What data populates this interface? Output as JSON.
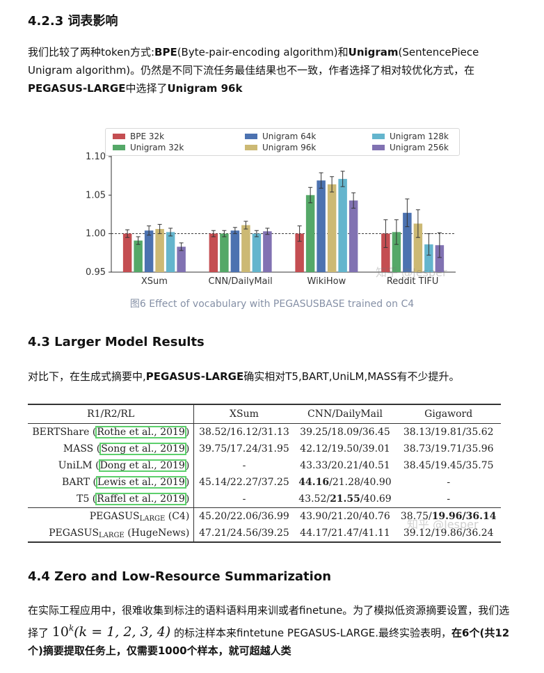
{
  "sections": {
    "s423": {
      "heading": "4.2.3 词表影响",
      "para_a": "我们比较了两种token方式:",
      "para_b": "BPE",
      "para_c": "(Byte-pair-encoding algorithm)和",
      "para_d": "Unigram",
      "para_e": "(SentencePiece Unigram algorithm)。仍然是不同下流任务最佳结果也不一致，作者选择了相对较优化方式，在",
      "para_f": "PEGASUS-LARGE",
      "para_g": "中选择了",
      "para_h": "Unigram 96k"
    },
    "s43": {
      "heading": "4.3 Larger Model Results",
      "para_a": "对比下，在生成式摘要中,",
      "para_b": "PEGASUS-LARGE",
      "para_c": "确实相对T5,BART,UniLM,MASS有不少提升。"
    },
    "s44": {
      "heading": "4.4 Zero and Low-Resource Summarization",
      "para_a": "在实际工程应用中，很难收集到标注的语料语料用来训或者finetune。为了模拟低资源摘要设置，我们选择了",
      "math_base": "10",
      "math_exp": "k",
      "math_rest": "(k = 1, 2, 3, 4)",
      "para_b": " 的标注样本来fintetune PEGASUS-LARGE.最终实验表明，",
      "para_c": "在6个(共12个)摘要提取任务上，仅需要1000个样本，就可超越人类"
    }
  },
  "figure": {
    "caption": "图6 Effect of vocabulary with PEGASUSBASE trained on C4",
    "watermark": "知乎 @Jesper"
  },
  "chart_data": {
    "type": "bar",
    "categories": [
      "XSum",
      "CNN/DailyMail",
      "WikiHow",
      "Reddit TIFU"
    ],
    "ylim": [
      0.95,
      1.1
    ],
    "yticks": [
      "0.95",
      "1.00",
      "1.05",
      "1.10"
    ],
    "reference_line": 1.0,
    "grid": false,
    "legend_position": "top",
    "series": [
      {
        "name": "BPE 32k",
        "color": "#c44e52",
        "values": [
          1.0,
          1.0,
          1.0,
          1.0
        ],
        "err": [
          0.005,
          0.004,
          0.01,
          0.018
        ]
      },
      {
        "name": "Unigram 32k",
        "color": "#55a868",
        "values": [
          0.991,
          1.0,
          1.05,
          1.002
        ],
        "err": [
          0.005,
          0.004,
          0.01,
          0.016
        ]
      },
      {
        "name": "Unigram 64k",
        "color": "#4c72b0",
        "values": [
          1.004,
          1.004,
          1.069,
          1.027
        ],
        "err": [
          0.006,
          0.004,
          0.01,
          0.018
        ]
      },
      {
        "name": "Unigram 96k",
        "color": "#ccb974",
        "values": [
          1.006,
          1.011,
          1.064,
          1.013
        ],
        "err": [
          0.006,
          0.005,
          0.01,
          0.018
        ]
      },
      {
        "name": "Unigram 128k",
        "color": "#64b5cd",
        "values": [
          1.002,
          1.0,
          1.071,
          0.986
        ],
        "err": [
          0.005,
          0.004,
          0.01,
          0.014
        ]
      },
      {
        "name": "Unigram 256k",
        "color": "#8172b2",
        "values": [
          0.983,
          1.003,
          1.043,
          0.985
        ],
        "err": [
          0.005,
          0.004,
          0.01,
          0.016
        ]
      }
    ]
  },
  "table": {
    "watermark": "知乎 @Jesper",
    "headers": [
      "R1/R2/RL",
      "XSum",
      "CNN/DailyMail",
      "Gigaword"
    ],
    "rows": [
      {
        "model": "BERTShare",
        "cite": "Rothe et al., 2019",
        "xsum": "38.52/16.12/31.13",
        "cnn": "39.25/18.09/36.45",
        "giga": "38.13/19.81/35.62"
      },
      {
        "model": "MASS",
        "cite": "Song et al., 2019",
        "xsum": "39.75/17.24/31.95",
        "cnn": "42.12/19.50/39.01",
        "giga": "38.73/19.71/35.96"
      },
      {
        "model": "UniLM",
        "cite": "Dong et al., 2019",
        "xsum": "-",
        "cnn": "43.33/20.21/40.51",
        "giga": "38.45/19.45/35.75"
      },
      {
        "model": "BART",
        "cite": "Lewis et al., 2019",
        "xsum": "45.14/22.27/37.25",
        "cnn_bold": "44.16",
        "cnn_rest": "/21.28/40.90",
        "giga": "-"
      },
      {
        "model": "T5",
        "cite": "Raffel et al., 2019",
        "xsum": "-",
        "cnn_pre": "43.52/",
        "cnn_bold": "21.55",
        "cnn_post": "/40.69",
        "giga": "-"
      },
      {
        "model": "PEGASUS",
        "sub": "LARGE",
        "suffix": "(C4)",
        "xsum": "45.20/22.06/36.99",
        "cnn": "43.90/21.20/40.76",
        "giga_pre": "38.75/",
        "giga_bold": "19.96/36.14"
      },
      {
        "model": "PEGASUS",
        "sub": "LARGE",
        "suffix": "(HugeNews)",
        "xsum": "47.21/24.56/39.25",
        "cnn": "44.17/21.47/41.11",
        "giga": "39.12/19.86/36.24"
      }
    ]
  }
}
